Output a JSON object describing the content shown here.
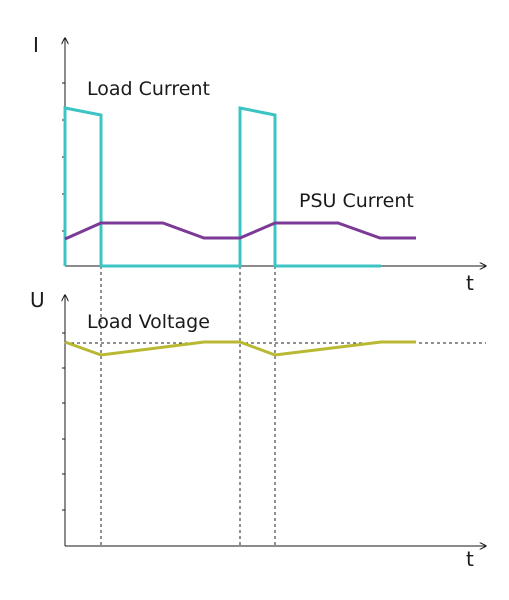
{
  "top_plot": {
    "y_axis_label": "I",
    "x_axis_label": "t",
    "traces": {
      "load_current": {
        "label": "Load Current",
        "color": "#3cc4c4"
      },
      "psu_current": {
        "label": "PSU Current",
        "color": "#7a3a96"
      }
    }
  },
  "bottom_plot": {
    "y_axis_label": "U",
    "x_axis_label": "t",
    "traces": {
      "load_voltage": {
        "label": "Load Voltage",
        "color": "#b8b832"
      }
    }
  }
}
